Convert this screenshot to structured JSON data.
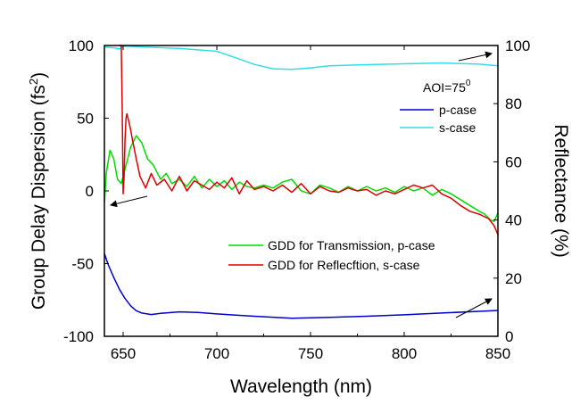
{
  "chart_data": {
    "type": "line",
    "xlabel": "Wavelength (nm)",
    "ylabel_left": "Group Delay Dispersion (fs",
    "ylabel_left_sup": "2",
    "ylabel_left_close": ")",
    "ylabel_right": "Reflectance (%)",
    "xlim": [
      640,
      850
    ],
    "ylim_left": [
      -100,
      100
    ],
    "ylim_right": [
      0,
      100
    ],
    "x_ticks": [
      650,
      700,
      750,
      800,
      850
    ],
    "y_left_ticks": [
      -100,
      -50,
      0,
      50,
      100
    ],
    "y_right_ticks": [
      0,
      20,
      40,
      60,
      80,
      100
    ],
    "x_tick_labels": [
      "650",
      "700",
      "750",
      "800",
      "850"
    ],
    "y_left_tick_labels": [
      "-100",
      "-50",
      "0",
      "50",
      "100"
    ],
    "y_right_tick_labels": [
      "0",
      "20",
      "40",
      "60",
      "80",
      "100"
    ],
    "annotation": {
      "text": "AOI=75",
      "sup": "0"
    },
    "grid": false,
    "series": [
      {
        "name": "p-case",
        "axis": "right",
        "color": "#0000cc",
        "x": [
          640,
          642,
          645,
          648,
          651,
          654,
          657,
          660,
          665,
          670,
          680,
          690,
          700,
          720,
          740,
          760,
          780,
          800,
          820,
          840,
          850
        ],
        "y": [
          28.5,
          24.7,
          20.2,
          16.2,
          13.0,
          10.5,
          8.8,
          8.0,
          7.5,
          7.9,
          8.4,
          8.2,
          7.7,
          6.9,
          6.2,
          6.5,
          6.9,
          7.4,
          8.0,
          8.6,
          8.9
        ]
      },
      {
        "name": "s-case",
        "axis": "right",
        "color": "#33dde8",
        "x": [
          640,
          645,
          648,
          650,
          653,
          660,
          680,
          700,
          710,
          720,
          730,
          740,
          750,
          760,
          780,
          800,
          820,
          840,
          850
        ],
        "y": [
          99.5,
          99.2,
          98.8,
          99.7,
          99.8,
          99.5,
          99.0,
          98.0,
          95.8,
          93.5,
          92.0,
          91.8,
          92.3,
          93.0,
          93.4,
          93.7,
          94.0,
          93.6,
          93.0
        ]
      },
      {
        "name": "GDD for Transmission, p-case",
        "axis": "left",
        "color": "#00dd00",
        "x": [
          640,
          641,
          643,
          645,
          647,
          649,
          651,
          654,
          657,
          660,
          663,
          666,
          670,
          673,
          676,
          680,
          684,
          688,
          692,
          696,
          700,
          704,
          708,
          712,
          716,
          720,
          725,
          730,
          735,
          740,
          745,
          750,
          755,
          760,
          765,
          770,
          775,
          780,
          785,
          790,
          795,
          800,
          805,
          810,
          815,
          820,
          825,
          830,
          835,
          840,
          843,
          846,
          848,
          850
        ],
        "y": [
          -8,
          12,
          28,
          22,
          8,
          5,
          15,
          30,
          38,
          33,
          22,
          18,
          8,
          12,
          5,
          8,
          3,
          10,
          2,
          8,
          3,
          7,
          1,
          6,
          3,
          2,
          4,
          2,
          6,
          8,
          0,
          -2,
          4,
          2,
          -1,
          3,
          0,
          3,
          0,
          2,
          -1,
          3,
          0,
          2,
          -3,
          1,
          -2,
          -6,
          -10,
          -14,
          -16,
          -20,
          -21,
          -15
        ]
      },
      {
        "name": "GDD for Reflecftion, s-case",
        "axis": "left",
        "color": "#dd0000",
        "x": [
          648,
          649,
          649.5,
          650,
          650.5,
          651,
          651.5,
          652,
          653,
          654,
          655,
          657,
          659,
          662,
          665,
          668,
          672,
          676,
          680,
          684,
          688,
          692,
          696,
          700,
          704,
          708,
          712,
          716,
          720,
          725,
          730,
          735,
          740,
          745,
          750,
          755,
          760,
          765,
          770,
          775,
          780,
          785,
          790,
          795,
          800,
          805,
          810,
          815,
          820,
          825,
          830,
          835,
          840,
          845,
          848,
          850
        ],
        "y": [
          100,
          100,
          60,
          -2,
          10,
          35,
          50,
          53,
          48,
          42,
          35,
          22,
          10,
          2,
          12,
          4,
          8,
          0,
          10,
          0,
          7,
          4,
          1,
          6,
          2,
          9,
          -2,
          7,
          1,
          3,
          0,
          4,
          -1,
          5,
          -2,
          3,
          0,
          -1,
          2,
          0,
          1,
          -3,
          0,
          -2,
          1,
          4,
          2,
          4,
          -2,
          -5,
          -10,
          -14,
          -16,
          -19,
          -24,
          -30
        ]
      }
    ],
    "legend_top": [
      "p-case",
      "s-case"
    ],
    "legend_bottom": [
      "GDD for Transmission, p-case",
      "GDD for Reflecftion, s-case"
    ]
  }
}
